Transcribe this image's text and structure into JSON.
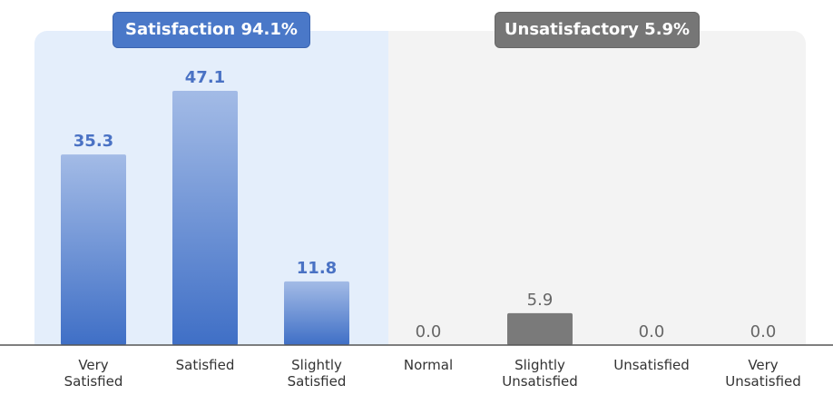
{
  "header": {
    "satisfaction_label": "Satisfaction 94.1%",
    "unsatisfactory_label": "Unsatisfactory 5.9%"
  },
  "chart_data": {
    "type": "bar",
    "categories": [
      "Very\nSatisfied",
      "Satisfied",
      "Slightly\nSatisfied",
      "Normal",
      "Slightly\nUnsatisfied",
      "Unsatisfied",
      "Very\nUnsatisfied"
    ],
    "values": [
      35.3,
      47.1,
      11.8,
      0.0,
      5.9,
      0.0,
      0.0
    ],
    "value_labels": [
      "35.3",
      "47.1",
      "11.8",
      "0.0",
      "5.9",
      "0.0",
      "0.0"
    ],
    "groups": [
      {
        "label": "Satisfaction 94.1%",
        "categories": [
          "Very\nSatisfied",
          "Satisfied",
          "Slightly\nSatisfied"
        ]
      },
      {
        "label": "Unsatisfactory 5.9%",
        "categories": [
          "Normal",
          "Slightly\nUnsatisfied",
          "Unsatisfied",
          "Very\nUnsatisfied"
        ]
      }
    ],
    "colors": {
      "satisfied": "#4a78c8",
      "satisfied_light": "#a3bbe6",
      "unsatisfied": "#7a7a7a",
      "satisfied_text": "#4a72c4",
      "unsatisfied_text": "#666666"
    },
    "ylim": [
      0,
      50
    ],
    "grid": false,
    "title": "",
    "xlabel": "",
    "ylabel": ""
  }
}
